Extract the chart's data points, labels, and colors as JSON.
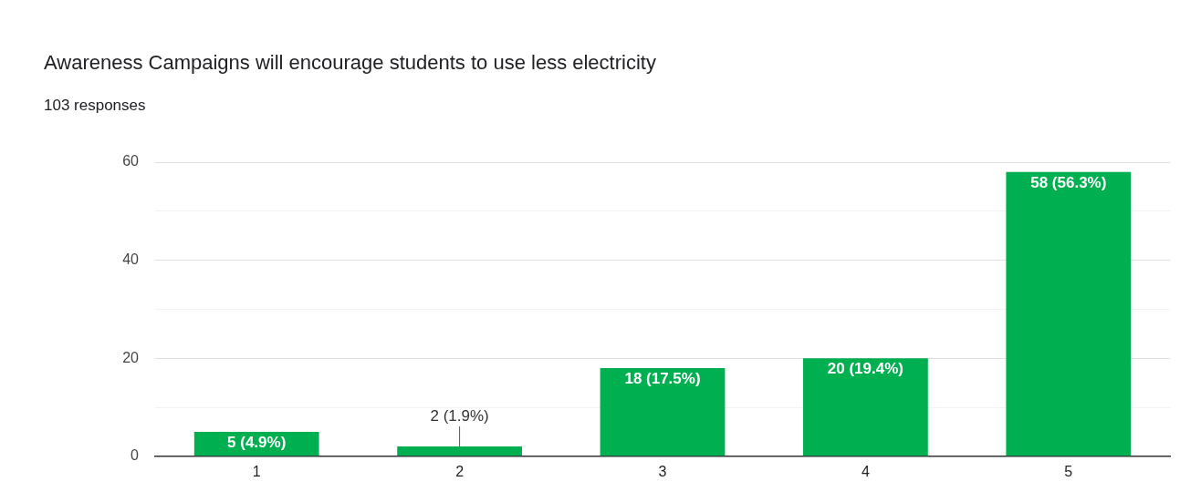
{
  "chart_data": {
    "type": "bar",
    "title": "Awareness Campaigns will encourage students to use less electricity",
    "subtitle": "103 responses",
    "categories": [
      "1",
      "2",
      "3",
      "4",
      "5"
    ],
    "values": [
      5,
      2,
      18,
      20,
      58
    ],
    "value_labels": [
      "5 (4.9%)",
      "2 (1.9%)",
      "18 (17.5%)",
      "20 (19.4%)",
      "58 (56.3%)"
    ],
    "color": "#00b050",
    "ylim": [
      0,
      60
    ],
    "yticks": [
      0,
      {
        "value": 10,
        "label": null
      },
      20,
      {
        "value": 30,
        "label": null
      },
      40,
      {
        "value": 50,
        "label": null
      },
      60
    ],
    "grid": "y",
    "legend": false
  }
}
